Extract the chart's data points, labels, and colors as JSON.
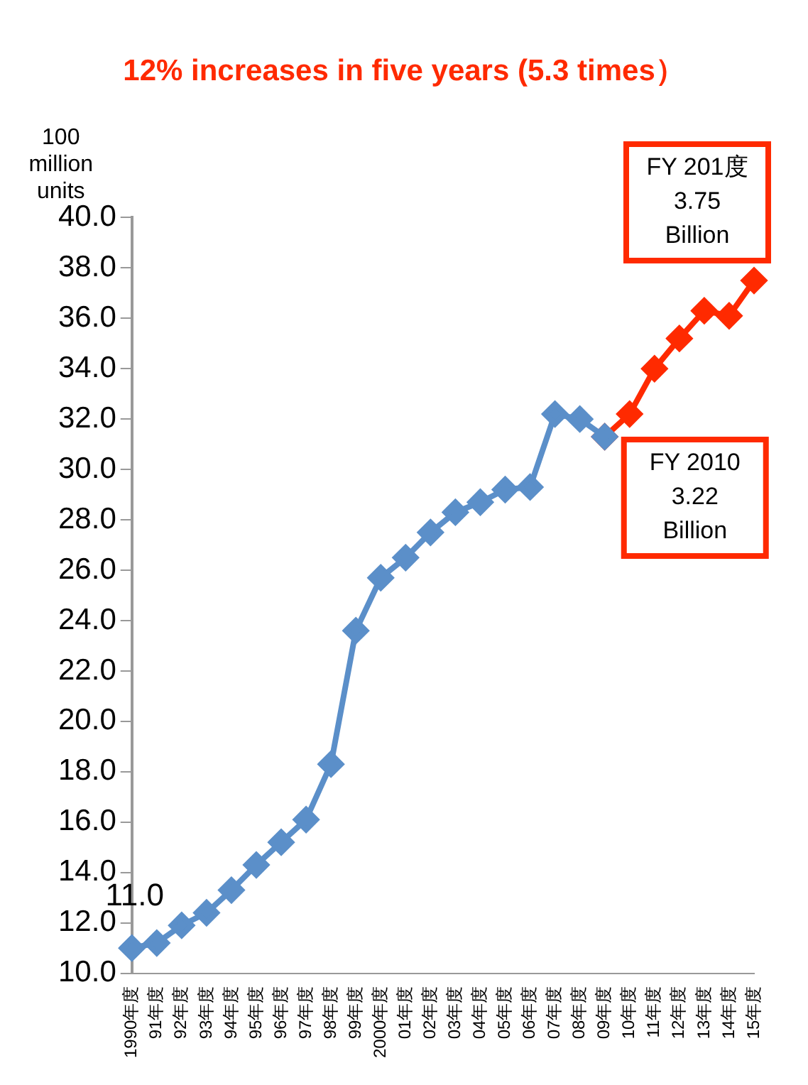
{
  "chart_data": {
    "type": "line",
    "title": "12% increases in five years (5.3 times）",
    "ylabel": "100 million units",
    "categories": [
      "1990年度",
      "91年度",
      "92年度",
      "93年度",
      "94年度",
      "95年度",
      "96年度",
      "97年度",
      "98年度",
      "99年度",
      "2000年度",
      "01年度",
      "02年度",
      "03年度",
      "04年度",
      "05年度",
      "06年度",
      "07年度",
      "08年度",
      "09年度",
      "10年度",
      "11年度",
      "12年度",
      "13年度",
      "14年度",
      "15年度"
    ],
    "series": [
      {
        "color": "#5b8fc9",
        "values": [
          11.0,
          11.2,
          11.9,
          12.4,
          13.3,
          14.3,
          15.2,
          16.1,
          18.3,
          23.6,
          25.7,
          26.5,
          27.5,
          28.3,
          28.7,
          29.2,
          29.3,
          32.2,
          32.0,
          31.3,
          null,
          null,
          null,
          null,
          null,
          null
        ]
      },
      {
        "color": "#ff2a00",
        "values": [
          null,
          null,
          null,
          null,
          null,
          null,
          null,
          null,
          null,
          null,
          null,
          null,
          null,
          null,
          null,
          null,
          null,
          null,
          null,
          31.3,
          32.2,
          34.0,
          35.2,
          36.3,
          36.1,
          37.5
        ]
      }
    ],
    "ylim": [
      10,
      40
    ],
    "yticks": [
      {
        "value": 10,
        "label": "10.0"
      },
      {
        "value": 12,
        "label": "12.0"
      },
      {
        "value": 14,
        "label": "14.0"
      },
      {
        "value": 16,
        "label": "16.0"
      },
      {
        "value": 18,
        "label": "18.0"
      },
      {
        "value": 20,
        "label": "20.0"
      },
      {
        "value": 22,
        "label": "22.0"
      },
      {
        "value": 24,
        "label": "24.0"
      },
      {
        "value": 26,
        "label": "26.0"
      },
      {
        "value": 28,
        "label": "28.0"
      },
      {
        "value": 30,
        "label": "30.0"
      },
      {
        "value": 32,
        "label": "32.0"
      },
      {
        "value": 34,
        "label": "34.0"
      },
      {
        "value": 36,
        "label": "36.0"
      },
      {
        "value": 38,
        "label": "38.0"
      },
      {
        "value": 40,
        "label": "40.0"
      }
    ],
    "marker": "diamond",
    "line_style": "solid",
    "grid": false,
    "legend": false,
    "annotations": [
      {
        "text": "11.0",
        "x": "1990年度",
        "y": 11.0
      },
      {
        "text": "FY 201度\n3.75\nBillion",
        "x": "15年度",
        "y": 37.5
      },
      {
        "text": "FY 2010\n3.22\nBillion",
        "x": "10年度",
        "y": 32.2
      }
    ]
  }
}
